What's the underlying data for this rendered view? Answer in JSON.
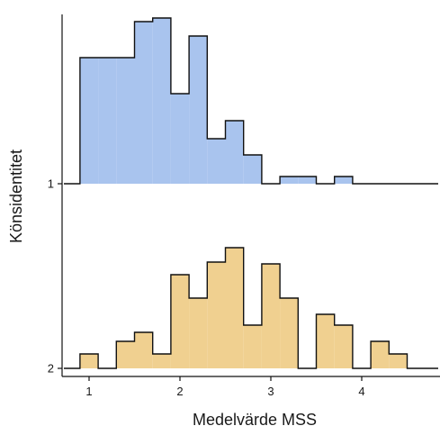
{
  "chart_data": {
    "type": "ridgeline-histogram",
    "xlabel": "Medelvärde MSS",
    "ylabel": "Könsidentitet",
    "xlim": [
      0.8,
      4.8
    ],
    "x_ticks": [
      1,
      2,
      3,
      4
    ],
    "y_ticks": [
      "1",
      "2"
    ],
    "bin_edges": [
      0.9,
      1.1,
      1.3,
      1.5,
      1.7,
      1.9,
      2.1,
      2.3,
      2.5,
      2.7,
      2.9,
      3.1,
      3.3,
      3.5,
      3.7,
      3.9,
      4.1,
      4.3,
      4.5,
      4.7
    ],
    "series": [
      {
        "name": "1",
        "fill": "#a9c4ee",
        "values": [
          7,
          7,
          7,
          9,
          9.2,
          5,
          8.2,
          2.5,
          3.5,
          1.6,
          0,
          0.4,
          0.4,
          0,
          0.4,
          0,
          0,
          0,
          0
        ]
      },
      {
        "name": "2",
        "fill": "#f0d090",
        "values": [
          0.8,
          0,
          1.5,
          2,
          0.8,
          5.2,
          3.9,
          5.9,
          6.7,
          2.4,
          5.8,
          3.9,
          0,
          3.0,
          2.4,
          0,
          1.5,
          0.8,
          0
        ]
      }
    ]
  }
}
